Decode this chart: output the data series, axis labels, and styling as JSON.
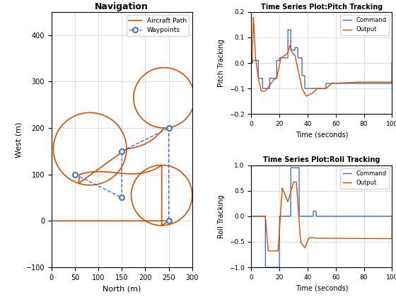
{
  "nav": {
    "title": "Navigation",
    "xlabel": "North (m)",
    "ylabel": "West (m)",
    "waypoints_x": [
      50,
      150,
      150,
      250,
      250
    ],
    "waypoints_y": [
      100,
      50,
      150,
      200,
      0
    ],
    "xlim": [
      0,
      300
    ],
    "ylim": [
      -100,
      450
    ],
    "xticks": [
      0,
      50,
      100,
      150,
      200,
      250,
      300
    ],
    "yticks": [
      -100,
      0,
      100,
      200,
      300,
      400
    ]
  },
  "pitch": {
    "title": "Time Series Plot:Pitch Tracking",
    "xlabel": "Time (seconds)",
    "ylabel": "Pitch Tracking",
    "xlim": [
      0,
      100
    ],
    "ylim": [
      -0.2,
      0.2
    ],
    "yticks": [
      -0.2,
      -0.1,
      0,
      0.1,
      0.2
    ],
    "xticks": [
      0,
      20,
      40,
      60,
      80,
      100
    ]
  },
  "roll": {
    "title": "Time Series Plot:Roll Tracking",
    "xlabel": "Time (seconds)",
    "ylabel": "Roll Tracking",
    "xlim": [
      0,
      100
    ],
    "ylim": [
      -1,
      1
    ],
    "yticks": [
      -1,
      -0.5,
      0,
      0.5,
      1
    ],
    "xticks": [
      0,
      20,
      40,
      60,
      80,
      100
    ]
  },
  "colors": {
    "waypoints": "#4472C4",
    "aircraft_path": "#D45000",
    "command": "#4472C4",
    "output": "#D45000",
    "grid": "#D0D0D0"
  }
}
